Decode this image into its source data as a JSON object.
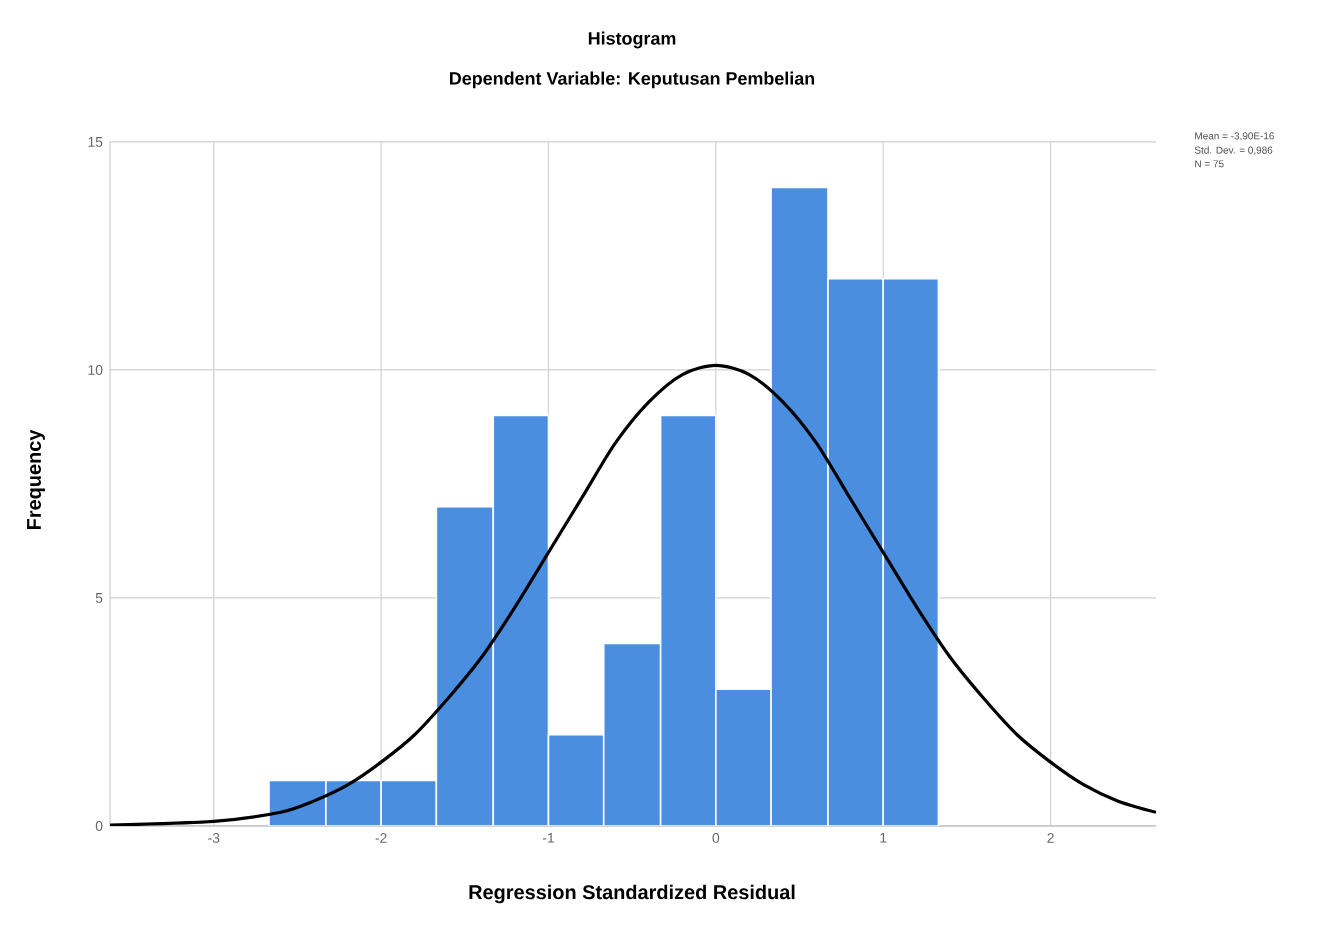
{
  "chart_data": {
    "type": "histogram",
    "title": "Histogram",
    "subtitle": "Dependent Variable: Keputusan Pembelian",
    "xlabel": "Regression Standardized Residual",
    "ylabel": "Frequency",
    "xlim": [
      -3.62,
      2.63
    ],
    "ylim": [
      0,
      15
    ],
    "xticks": [
      -3,
      -2,
      -1,
      0,
      1,
      2
    ],
    "yticks": [
      0,
      5,
      10,
      15
    ],
    "grid": true,
    "annotations": [
      "Mean = -3,90E-16",
      "Std. Dev. = 0,986",
      "N = 75"
    ],
    "series": [
      {
        "type": "histogram",
        "color": "#4a8ee0",
        "bins": [
          -2.67,
          -2.33,
          -2.0,
          -1.67,
          -1.33,
          -1.0,
          -0.67,
          -0.33,
          0.0,
          0.33,
          0.67,
          1.0,
          1.33
        ],
        "values": [
          1,
          1,
          1,
          7,
          9,
          2,
          4,
          9,
          3,
          14,
          12,
          12
        ]
      },
      {
        "type": "line",
        "color": "#000000",
        "x": [
          -3.62,
          -3.0,
          -2.6,
          -2.4,
          -2.2,
          -2.0,
          -1.8,
          -1.6,
          -1.4,
          -1.2,
          -1.0,
          -0.8,
          -0.6,
          -0.4,
          -0.2,
          0.0,
          0.2,
          0.4,
          0.6,
          0.8,
          1.0,
          1.2,
          1.4,
          1.6,
          1.8,
          2.0,
          2.2,
          2.4,
          2.63
        ],
        "values": [
          0.02,
          0.1,
          0.3,
          0.55,
          0.9,
          1.4,
          2.0,
          2.8,
          3.7,
          4.8,
          6.0,
          7.2,
          8.4,
          9.3,
          9.9,
          10.1,
          9.9,
          9.3,
          8.4,
          7.2,
          6.0,
          4.8,
          3.7,
          2.8,
          2.0,
          1.4,
          0.9,
          0.55,
          0.3
        ]
      }
    ]
  }
}
